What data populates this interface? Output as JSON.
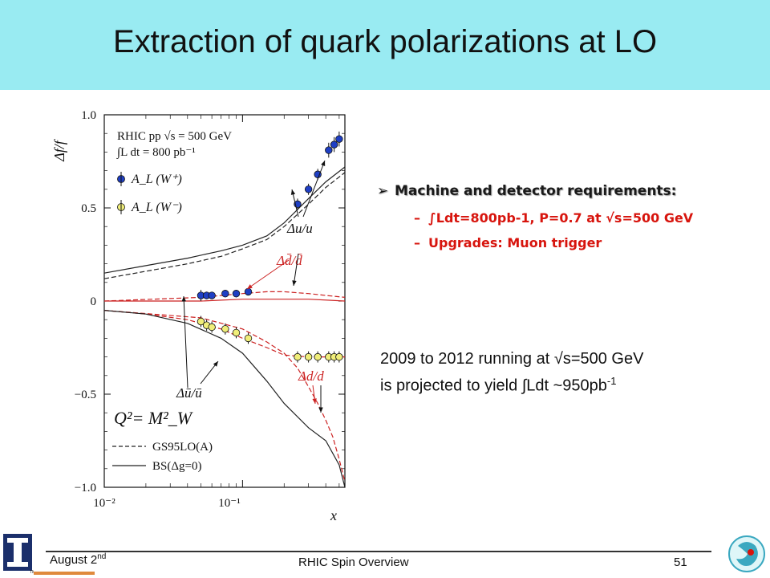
{
  "slide": {
    "title": "Extraction of quark polarizations at LO",
    "bullets": {
      "heading_arrow": "➢",
      "heading": "Machine and detector requirements:",
      "items": [
        {
          "dash": "–",
          "text": "∫Ldt=800pb-1, P=0.7 at √s=500 GeV"
        },
        {
          "dash": "–",
          "text": "Upgrades:  Muon trigger"
        }
      ]
    },
    "note": {
      "line1": "2009 to 2012 running at √s=500 GeV",
      "line2_main": "is projected to yield ∫Ldt ~950pb",
      "line2_sup": "-1"
    },
    "footer": {
      "date_main": "August 2",
      "date_sup": "nd",
      "center": "RHIC Spin Overview",
      "page": "51",
      "logo_mark": "TM"
    }
  },
  "chart_data": {
    "type": "line",
    "xlabel": "x",
    "ylabel": "Δf/f",
    "x_scale": "log",
    "xlim": [
      0.01,
      0.55
    ],
    "ylim": [
      -1.0,
      1.0
    ],
    "x_ticks": [
      "10⁻²",
      "10⁻¹"
    ],
    "y_ticks": [
      "1.0",
      "0.5",
      "0",
      "−0.5",
      "−1.0"
    ],
    "legend": {
      "header_line1": "RHIC pp √s = 500 GeV",
      "header_line2": "∫L dt = 800 pb⁻¹",
      "markers": [
        {
          "label": "A_L (W⁺)",
          "color": "#1f3fc4"
        },
        {
          "label": "A_L (W⁻)",
          "color": "#f0ee7a"
        }
      ],
      "lines": [
        {
          "label": "GS95LO(A)",
          "style": "dashed"
        },
        {
          "label": "BS(Δg=0)",
          "style": "solid"
        }
      ]
    },
    "scale_label": "Q²= M²_W",
    "annotations": [
      "Δu/u",
      "Δd̄/d̄",
      "Δū/ū",
      "Δd/d"
    ],
    "series": [
      {
        "key": "du_bs",
        "color": "#222222",
        "style": "solid",
        "x": [
          0.01,
          0.02,
          0.04,
          0.07,
          0.1,
          0.15,
          0.2,
          0.3,
          0.4,
          0.55
        ],
        "y": [
          0.15,
          0.19,
          0.23,
          0.27,
          0.3,
          0.35,
          0.42,
          0.55,
          0.64,
          0.72
        ]
      },
      {
        "key": "du_gs",
        "color": "#222222",
        "style": "dashed",
        "x": [
          0.01,
          0.02,
          0.04,
          0.07,
          0.1,
          0.15,
          0.2,
          0.3,
          0.4,
          0.55
        ],
        "y": [
          0.12,
          0.16,
          0.2,
          0.24,
          0.28,
          0.33,
          0.4,
          0.52,
          0.61,
          0.69
        ]
      },
      {
        "key": "dbar_bs",
        "color": "#cc2222",
        "style": "solid",
        "x": [
          0.01,
          0.05,
          0.1,
          0.2,
          0.3,
          0.55
        ],
        "y": [
          0.0,
          0.0,
          0.01,
          0.01,
          0.01,
          0.0
        ]
      },
      {
        "key": "dbar_gs",
        "color": "#cc2222",
        "style": "dashed",
        "x": [
          0.01,
          0.05,
          0.1,
          0.15,
          0.2,
          0.3,
          0.4,
          0.55
        ],
        "y": [
          0.0,
          0.02,
          0.04,
          0.05,
          0.05,
          0.04,
          0.03,
          0.02
        ]
      },
      {
        "key": "ubar_gs",
        "color": "#cc2222",
        "style": "dashed",
        "x": [
          0.01,
          0.02,
          0.04,
          0.07,
          0.1,
          0.15,
          0.2,
          0.3,
          0.55
        ],
        "y": [
          -0.05,
          -0.07,
          -0.1,
          -0.15,
          -0.2,
          -0.25,
          -0.29,
          -0.3,
          -0.3
        ]
      },
      {
        "key": "dd_gs",
        "color": "#cc2222",
        "style": "dashed",
        "x": [
          0.01,
          0.05,
          0.1,
          0.15,
          0.2,
          0.25,
          0.3,
          0.35,
          0.4,
          0.45,
          0.5,
          0.55
        ],
        "y": [
          -0.05,
          -0.09,
          -0.15,
          -0.22,
          -0.28,
          -0.36,
          -0.46,
          -0.55,
          -0.64,
          -0.73,
          -0.85,
          -0.97
        ]
      },
      {
        "key": "dd_bs",
        "color": "#222222",
        "style": "solid",
        "x": [
          0.01,
          0.02,
          0.04,
          0.07,
          0.1,
          0.15,
          0.2,
          0.3,
          0.4,
          0.5,
          0.55
        ],
        "y": [
          -0.05,
          -0.07,
          -0.12,
          -0.2,
          -0.28,
          -0.43,
          -0.55,
          -0.68,
          -0.75,
          -0.88,
          -1.0
        ]
      }
    ],
    "points": [
      {
        "name": "W+ measured",
        "color": "#1f3fc4",
        "x": [
          0.05,
          0.055,
          0.06,
          0.075,
          0.09,
          0.11,
          0.25,
          0.3,
          0.35,
          0.42,
          0.46,
          0.5
        ],
        "y": [
          0.03,
          0.03,
          0.03,
          0.04,
          0.04,
          0.05,
          0.52,
          0.6,
          0.68,
          0.81,
          0.84,
          0.87
        ],
        "err": [
          0.03,
          0.02,
          0.02,
          0.02,
          0.02,
          0.02,
          0.03,
          0.03,
          0.03,
          0.04,
          0.04,
          0.04
        ]
      },
      {
        "name": "W- measured",
        "color": "#f0ee7a",
        "x": [
          0.05,
          0.055,
          0.06,
          0.075,
          0.09,
          0.11,
          0.25,
          0.3,
          0.35,
          0.42,
          0.46,
          0.5
        ],
        "y": [
          -0.11,
          -0.13,
          -0.14,
          -0.15,
          -0.17,
          -0.2,
          -0.3,
          -0.3,
          -0.3,
          -0.3,
          -0.3,
          -0.3
        ],
        "err": [
          0.03,
          0.03,
          0.03,
          0.03,
          0.03,
          0.03,
          0.03,
          0.03,
          0.03,
          0.03,
          0.03,
          0.03
        ]
      }
    ]
  }
}
